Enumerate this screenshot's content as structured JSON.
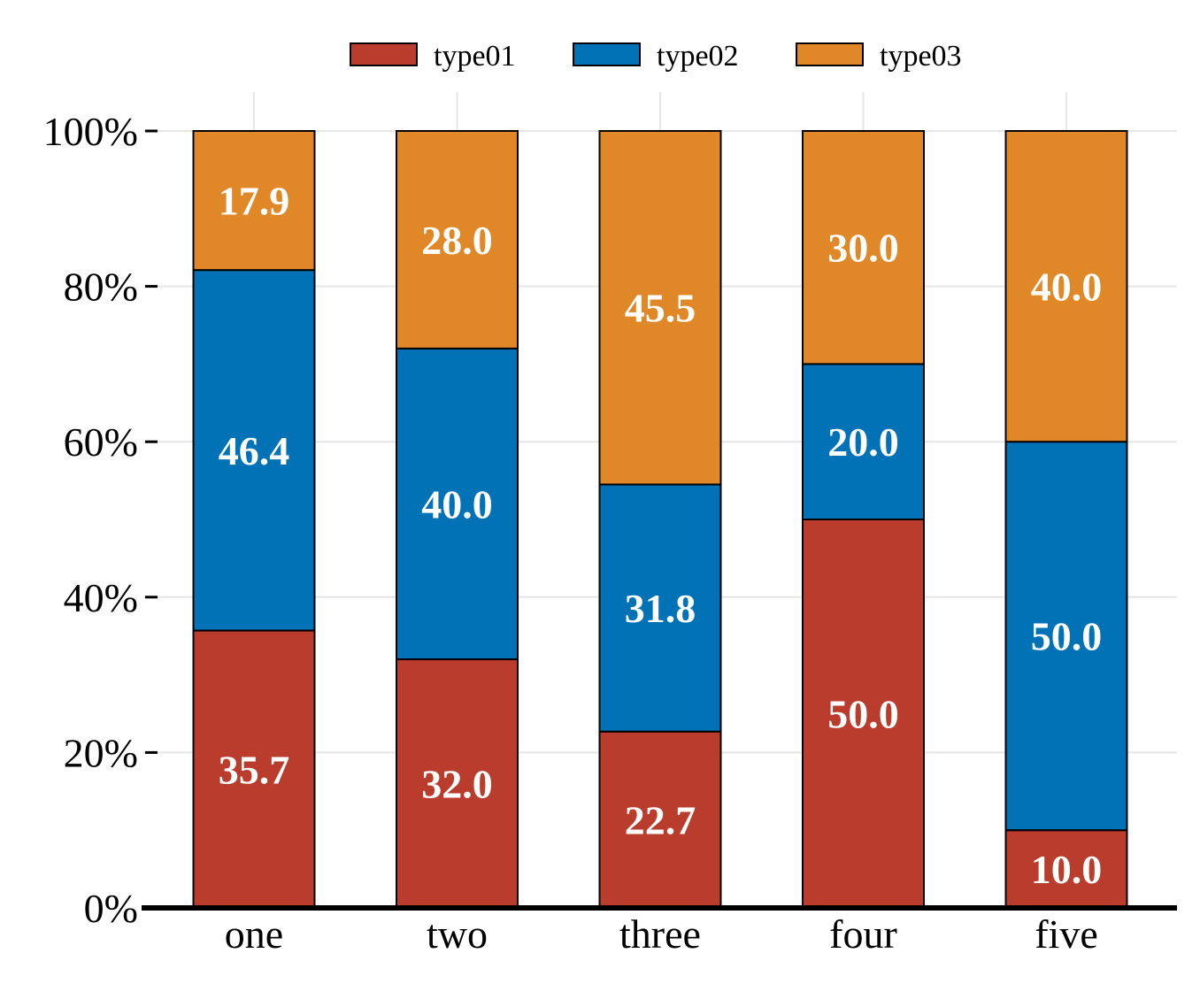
{
  "chart_data": {
    "type": "bar",
    "stacked": true,
    "percent": true,
    "categories": [
      "one",
      "two",
      "three",
      "four",
      "five"
    ],
    "series": [
      {
        "name": "type01",
        "color": "#BA3C2C",
        "values": [
          35.7,
          32.0,
          22.7,
          50.0,
          10.0
        ]
      },
      {
        "name": "type02",
        "color": "#0072B5",
        "values": [
          46.4,
          40.0,
          31.8,
          20.0,
          50.0
        ]
      },
      {
        "name": "type03",
        "color": "#E08828",
        "values": [
          17.9,
          28.0,
          45.5,
          30.0,
          40.0
        ]
      }
    ],
    "yticks": [
      "0%",
      "20%",
      "40%",
      "60%",
      "80%",
      "100%"
    ],
    "ylim": [
      0,
      100
    ],
    "grid": true,
    "legend_position": "top"
  }
}
